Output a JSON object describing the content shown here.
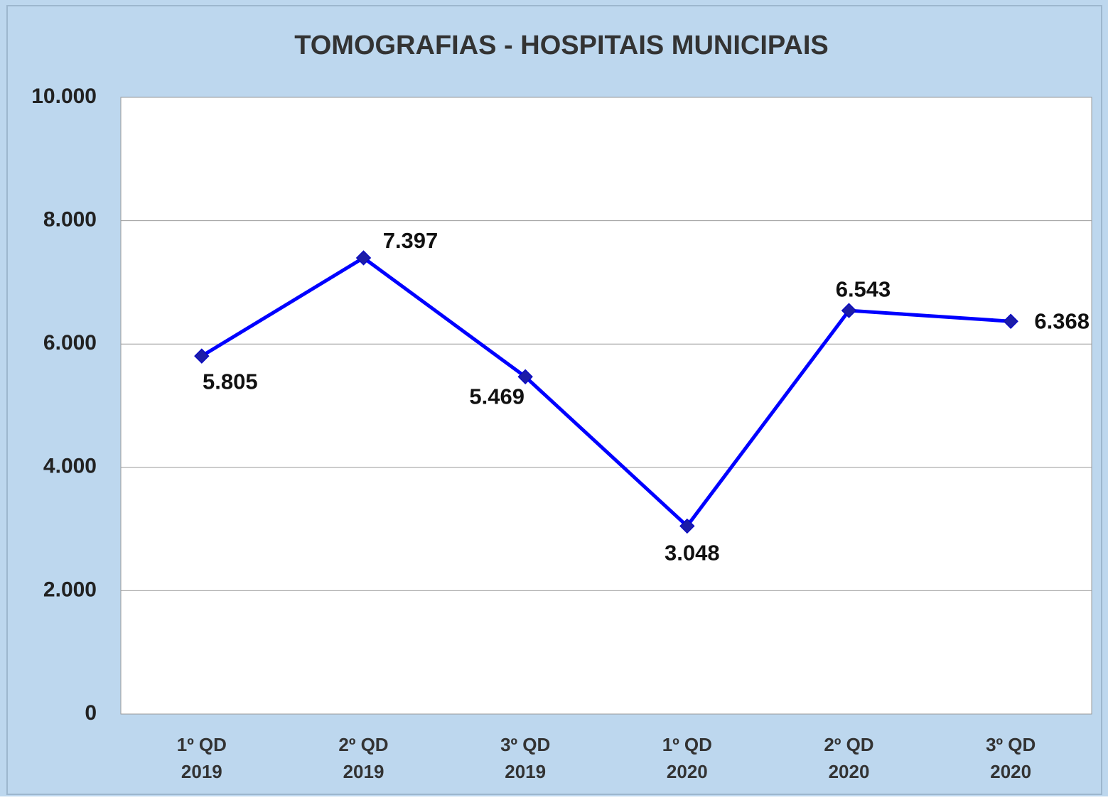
{
  "chart_data": {
    "type": "line",
    "title": "TOMOGRAFIAS - HOSPITAIS MUNICIPAIS",
    "categories": [
      "1º QD\n2019",
      "2º QD\n2019",
      "3º QD\n2019",
      "1º QD\n2020",
      "2º QD\n2020",
      "3º QD\n2020"
    ],
    "series": [
      {
        "name": null,
        "color": "#0000ff",
        "values": [
          5805,
          7397,
          5469,
          3048,
          6543,
          6368
        ],
        "value_labels": [
          "5.805",
          "7.397",
          "5.469",
          "3.048",
          "6.543",
          "6.368"
        ]
      }
    ],
    "ylim": [
      0,
      10000
    ],
    "yticks": [
      0,
      {
        "value": 2000,
        "label": "2.000"
      },
      {
        "value": 4000,
        "label": "4.000"
      },
      {
        "value": 6000,
        "label": "6.000"
      },
      {
        "value": 8000,
        "label": "8.000"
      },
      {
        "value": 10000,
        "label": "10.000"
      }
    ],
    "grid": true
  }
}
